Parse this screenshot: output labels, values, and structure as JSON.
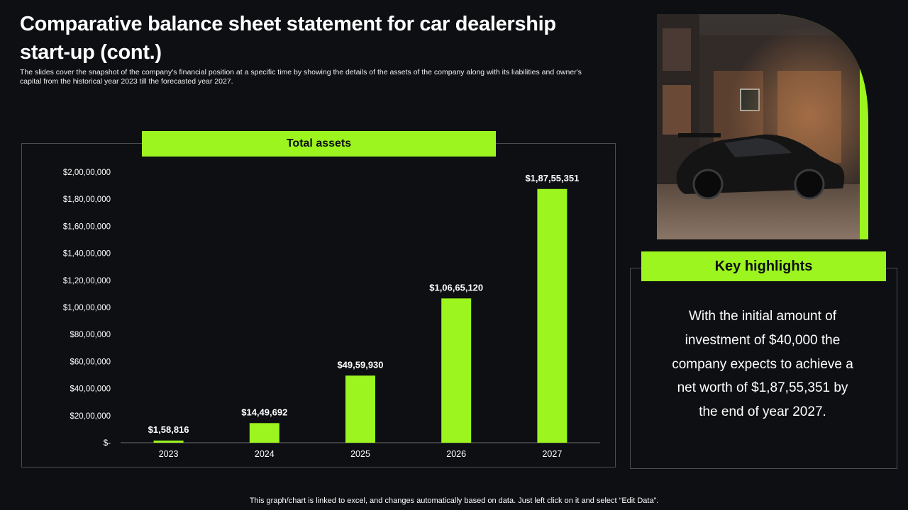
{
  "page": {
    "title": "Comparative balance sheet statement for car dealership start-up (cont.)",
    "subtitle": "The slides cover the snapshot of the company's financial position at a specific time by showing the details of the assets of the company along with its liabilities and owner's capital from the historical year 2023 till the forecasted year 2027.",
    "footnote": "This graph/chart is linked to excel, and changes automatically based on data. Just left click on it and select “Edit Data”."
  },
  "colors": {
    "accent": "#9cf51e",
    "background": "#0d0f12",
    "border": "#4a4d52",
    "text": "#ffffff"
  },
  "key_highlights": {
    "title": "Key highlights",
    "text": "With the initial amount of investment of $40,000 the company expects to achieve a net worth of $1,87,55,351 by the end of year 2027."
  },
  "photo": {
    "icon": "sports-car-photo"
  },
  "chart_data": {
    "type": "bar",
    "title": "Total assets",
    "xlabel": "",
    "ylabel": "",
    "categories": [
      "2023",
      "2024",
      "2025",
      "2026",
      "2027"
    ],
    "values": [
      158816,
      1449692,
      4959930,
      10665120,
      18755351
    ],
    "data_labels": [
      "$1,58,816",
      "$14,49,692",
      "$49,59,930",
      "$1,06,65,120",
      "$1,87,55,351"
    ],
    "ylim": [
      0,
      20000000
    ],
    "yticks": [
      0,
      2000000,
      4000000,
      6000000,
      8000000,
      10000000,
      12000000,
      14000000,
      16000000,
      18000000,
      20000000
    ],
    "ytick_labels": [
      "$-",
      "$20,00,000",
      "$40,00,000",
      "$60,00,000",
      "$80,00,000",
      "$1,00,00,000",
      "$1,20,00,000",
      "$1,40,00,000",
      "$1,60,00,000",
      "$1,80,00,000",
      "$2,00,00,000"
    ],
    "grid": false,
    "legend": "none",
    "bar_color": "#9cf51e"
  }
}
